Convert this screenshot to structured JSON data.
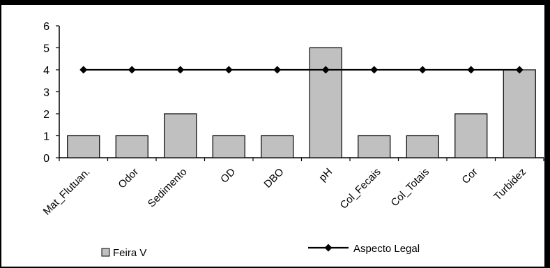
{
  "chart_data": {
    "type": "bar",
    "categories": [
      "Mat_Flutuan.",
      "Odor",
      "Sedimento",
      "OD",
      "DBO",
      "pH",
      "Col_Fecais",
      "Col_Totais",
      "Cor",
      "Turbidez"
    ],
    "series": [
      {
        "name": "Feira V",
        "type": "bar",
        "values": [
          1,
          1,
          2,
          1,
          1,
          5,
          1,
          1,
          2,
          4
        ],
        "color": "#c0c0c0"
      },
      {
        "name": "Aspecto Legal",
        "type": "line",
        "values": [
          4,
          4,
          4,
          4,
          4,
          4,
          4,
          4,
          4,
          4
        ],
        "color": "#000000",
        "marker": "diamond"
      }
    ],
    "ylim": [
      0,
      6
    ],
    "yticks": [
      0,
      1,
      2,
      3,
      4,
      5,
      6
    ],
    "grid": false,
    "title": "",
    "xlabel": "",
    "ylabel": "",
    "legend_position": "bottom"
  }
}
